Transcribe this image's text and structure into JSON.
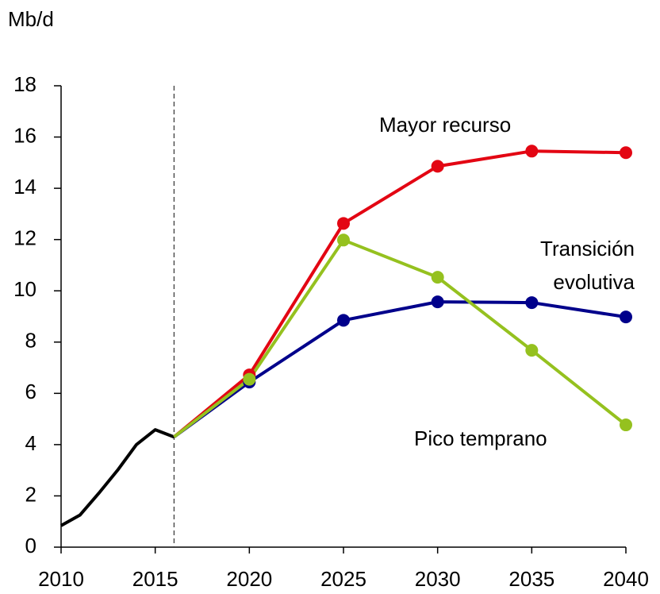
{
  "chart_data": {
    "type": "line",
    "y_axis_label": "Mb/d",
    "xlim": [
      2010,
      2040
    ],
    "xticks": [
      2010,
      2015,
      2020,
      2025,
      2030,
      2035,
      2040
    ],
    "ylim": [
      0,
      18
    ],
    "yticks": [
      0,
      2,
      4,
      6,
      8,
      10,
      12,
      14,
      16,
      18
    ],
    "series": [
      {
        "color": "#000000",
        "markers": false,
        "x": [
          2010,
          2011,
          2012,
          2013,
          2014,
          2015,
          2016
        ],
        "values": [
          0.84,
          1.25,
          2.1,
          3.0,
          4.0,
          4.58,
          4.3
        ]
      },
      {
        "name": "Mayor recurso",
        "color": "#e30613",
        "markers": true,
        "x": [
          2016,
          2020,
          2025,
          2030,
          2035,
          2040
        ],
        "values": [
          4.3,
          6.72,
          12.63,
          14.86,
          15.45,
          15.39
        ]
      },
      {
        "name": "Transición evolutiva",
        "color": "#00008b",
        "markers": true,
        "x": [
          2016,
          2020,
          2025,
          2030,
          2035,
          2040
        ],
        "values": [
          4.3,
          6.44,
          8.85,
          9.57,
          9.54,
          8.98
        ]
      },
      {
        "name": "Pico temprano",
        "color": "#95c11f",
        "markers": true,
        "x": [
          2016,
          2020,
          2025,
          2030,
          2035,
          2040
        ],
        "values": [
          4.3,
          6.55,
          11.98,
          10.53,
          7.68,
          4.77
        ]
      }
    ]
  }
}
